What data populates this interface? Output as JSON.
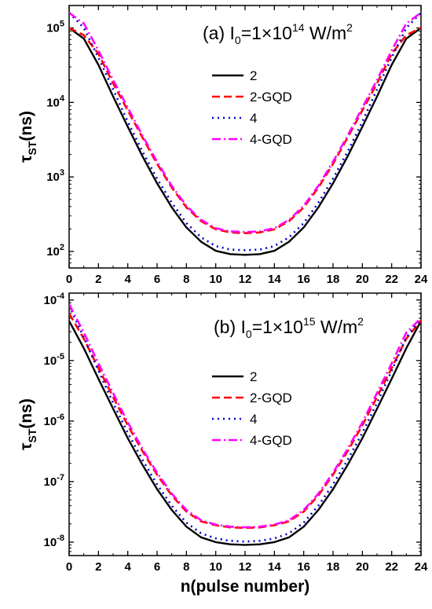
{
  "chart_data": [
    {
      "type": "line",
      "panel_label": "(a)",
      "title_prefix": "(a) I",
      "title_sub": "0",
      "title_mid": "=1×10",
      "title_sup": "14",
      "title_unit": " W/m",
      "title_unit_sup": "2",
      "ylabel_main": "τ",
      "ylabel_sub": "ST",
      "ylabel_unit": "(ns)",
      "xlabel": "",
      "xlim": [
        0,
        24
      ],
      "ylim": [
        60,
        200000
      ],
      "yscale": "log",
      "xticks": [
        "0",
        "2",
        "4",
        "6",
        "8",
        "10",
        "12",
        "14",
        "16",
        "18",
        "20",
        "22",
        "24"
      ],
      "yticks": [
        {
          "value": 100,
          "base": "10",
          "exp": "2"
        },
        {
          "value": 1000,
          "base": "10",
          "exp": "3"
        },
        {
          "value": 10000,
          "base": "10",
          "exp": "4"
        },
        {
          "value": 100000,
          "base": "10",
          "exp": "5"
        }
      ],
      "legend_position": "right-middle",
      "x": [
        0,
        1,
        2,
        3,
        4,
        5,
        6,
        7,
        8,
        9,
        10,
        11,
        12,
        13,
        14,
        15,
        16,
        17,
        18,
        19,
        20,
        21,
        22,
        23,
        24
      ],
      "series": [
        {
          "name": "2",
          "color": "#000000",
          "dash": "solid",
          "values": [
            100000,
            72000,
            32000,
            12000,
            4700,
            1900,
            820,
            390,
            210,
            135,
            102,
            92,
            90,
            92,
            102,
            135,
            210,
            390,
            820,
            1900,
            4700,
            12000,
            32000,
            72000,
            100000
          ]
        },
        {
          "name": "2-GQD",
          "color": "#ff0000",
          "dash": "dash",
          "values": [
            100000,
            80000,
            45000,
            18000,
            7800,
            3400,
            1500,
            720,
            390,
            255,
            198,
            180,
            176,
            180,
            198,
            255,
            390,
            720,
            1500,
            3400,
            7800,
            18000,
            45000,
            80000,
            100000
          ]
        },
        {
          "name": "4",
          "color": "#0000cc",
          "dash": "dot",
          "values": [
            160000,
            100000,
            40000,
            15000,
            5500,
            2200,
            950,
            450,
            240,
            155,
            118,
            106,
            104,
            106,
            118,
            155,
            240,
            450,
            950,
            2200,
            5500,
            15000,
            40000,
            100000,
            160000
          ]
        },
        {
          "name": "4-GQD",
          "color": "#ff00ff",
          "dash": "dashdot",
          "values": [
            160000,
            115000,
            50000,
            20000,
            8500,
            3600,
            1600,
            760,
            410,
            265,
            205,
            186,
            182,
            186,
            205,
            265,
            410,
            760,
            1600,
            3600,
            8500,
            20000,
            50000,
            115000,
            160000
          ]
        }
      ]
    },
    {
      "type": "line",
      "panel_label": "(b)",
      "title_prefix": "(b) I",
      "title_sub": "0",
      "title_mid": "=1×10",
      "title_sup": "15",
      "title_unit": " W/m",
      "title_unit_sup": "2",
      "ylabel_main": "τ",
      "ylabel_sub": "ST",
      "ylabel_unit": "(ns)",
      "xlabel": "n(pulse number)",
      "xlim": [
        0,
        24
      ],
      "ylim": [
        6e-09,
        0.00013
      ],
      "yscale": "log",
      "xticks": [
        "0",
        "2",
        "4",
        "6",
        "8",
        "10",
        "12",
        "14",
        "16",
        "18",
        "20",
        "22",
        "24"
      ],
      "yticks": [
        {
          "value": 1e-08,
          "base": "10",
          "exp": "-8"
        },
        {
          "value": 1e-07,
          "base": "10",
          "exp": "-7"
        },
        {
          "value": 1e-06,
          "base": "10",
          "exp": "-6"
        },
        {
          "value": 1e-05,
          "base": "10",
          "exp": "-5"
        },
        {
          "value": 0.0001,
          "base": "10",
          "exp": "-4"
        }
      ],
      "legend_position": "right-middle",
      "x": [
        0,
        1,
        2,
        3,
        4,
        5,
        6,
        7,
        8,
        9,
        10,
        11,
        12,
        13,
        14,
        15,
        16,
        17,
        18,
        19,
        20,
        21,
        22,
        23,
        24
      ],
      "series": [
        {
          "name": "2",
          "color": "#000000",
          "dash": "solid",
          "values": [
            4.5e-05,
            1.6e-05,
            5e-06,
            1.6e-06,
            5.2e-07,
            1.9e-07,
            7.5e-08,
            3.4e-08,
            1.8e-08,
            1.2e-08,
            1e-08,
            9.2e-09,
            9e-09,
            9.2e-09,
            1e-08,
            1.2e-08,
            1.8e-08,
            3.4e-08,
            7.5e-08,
            1.9e-07,
            5.2e-07,
            1.6e-06,
            5e-06,
            1.6e-05,
            4.5e-05
          ]
        },
        {
          "name": "2-GQD",
          "color": "#ff0000",
          "dash": "dash",
          "values": [
            6e-05,
            2.3e-05,
            7.5e-06,
            2.5e-06,
            8.5e-07,
            3.2e-07,
            1.3e-07,
            5.9e-08,
            3.2e-08,
            2.2e-08,
            1.9e-08,
            1.75e-08,
            1.72e-08,
            1.75e-08,
            1.9e-08,
            2.2e-08,
            3.2e-08,
            5.9e-08,
            1.3e-07,
            3.2e-07,
            8.5e-07,
            2.5e-06,
            7.5e-06,
            2.3e-05,
            4.6e-05
          ]
        },
        {
          "name": "4",
          "color": "#0000cc",
          "dash": "dot",
          "values": [
            8e-05,
            2.4e-05,
            6.8e-06,
            2e-06,
            6.4e-07,
            2.3e-07,
            9e-08,
            4e-08,
            2.1e-08,
            1.4e-08,
            1.15e-08,
            1.05e-08,
            1.02e-08,
            1.05e-08,
            1.15e-08,
            1.4e-08,
            2.1e-08,
            4e-08,
            9e-08,
            2.3e-07,
            6.4e-07,
            2e-06,
            6.8e-06,
            2.4e-05,
            5e-05
          ]
        },
        {
          "name": "4-GQD",
          "color": "#ff00ff",
          "dash": "dashdot",
          "values": [
            8.5e-05,
            2.9e-05,
            9e-06,
            2.9e-06,
            9.5e-07,
            3.5e-07,
            1.4e-07,
            6.3e-08,
            3.4e-08,
            2.3e-08,
            1.95e-08,
            1.8e-08,
            1.76e-08,
            1.8e-08,
            1.95e-08,
            2.3e-08,
            3.4e-08,
            6.3e-08,
            1.4e-07,
            3.5e-07,
            9.5e-07,
            2.9e-06,
            9e-06,
            2.9e-05,
            5e-05
          ]
        }
      ]
    }
  ]
}
